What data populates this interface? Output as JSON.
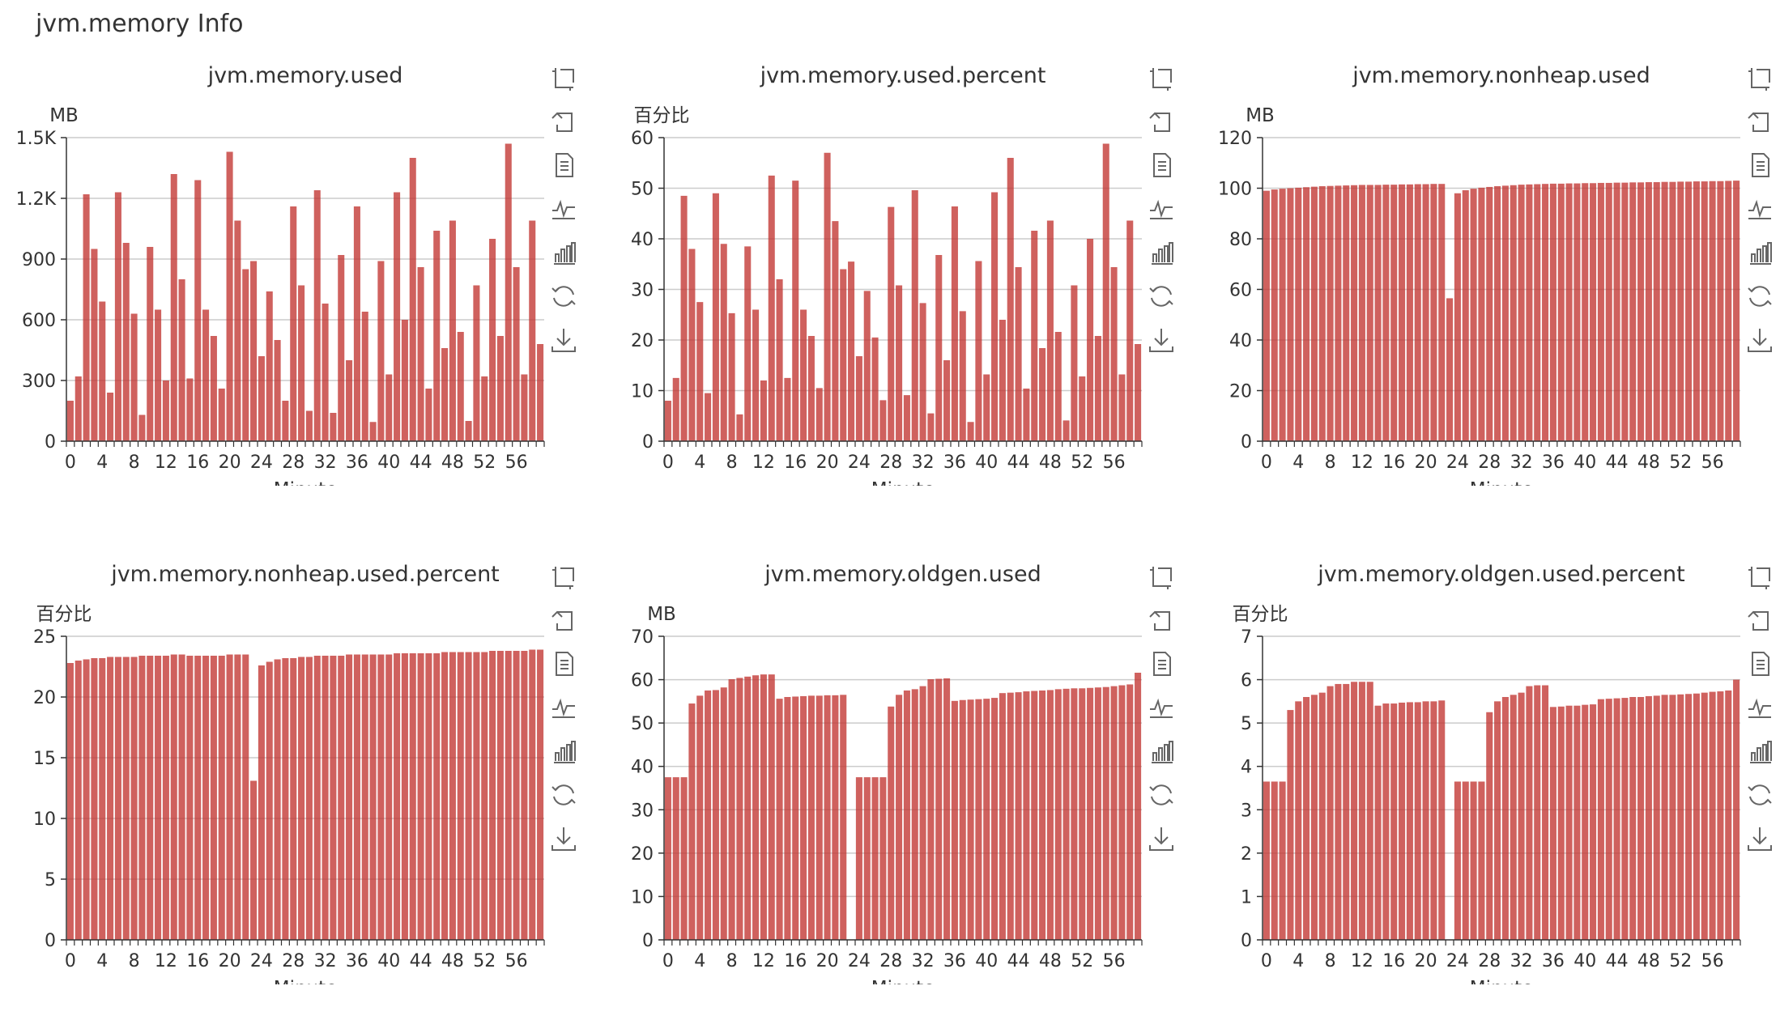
{
  "page": {
    "title": "jvm.memory Info"
  },
  "theme": {
    "bar_color": "#c23531",
    "axis_color": "#333333",
    "grid_color": "#cccccc"
  },
  "toolbox": [
    {
      "name": "data-zoom-icon",
      "title": ""
    },
    {
      "name": "zoom-reset-icon",
      "title": ""
    },
    {
      "name": "data-view-icon",
      "title": ""
    },
    {
      "name": "line-chart-icon",
      "title": ""
    },
    {
      "name": "bar-chart-icon",
      "title": ""
    },
    {
      "name": "restore-icon",
      "title": ""
    },
    {
      "name": "save-image-icon",
      "title": ""
    }
  ],
  "chart_data": [
    {
      "type": "bar",
      "title": "jvm.memory.used",
      "ylabel": "MB",
      "xlabel": "Minute",
      "ylim": [
        0,
        1500
      ],
      "yticks": [
        0,
        300,
        600,
        900,
        1200,
        1500
      ],
      "ytick_labels": [
        "0",
        "300",
        "600",
        "900",
        "1.2K",
        "1.5K"
      ],
      "xtick_labels": [
        "0",
        "4",
        "8",
        "12",
        "16",
        "20",
        "24",
        "28",
        "32",
        "36",
        "40",
        "44",
        "48",
        "52",
        "56"
      ],
      "grid": true,
      "categories": [
        "0",
        "1",
        "2",
        "3",
        "4",
        "5",
        "6",
        "7",
        "8",
        "9",
        "10",
        "11",
        "12",
        "13",
        "14",
        "15",
        "16",
        "17",
        "18",
        "19",
        "20",
        "21",
        "22",
        "23",
        "24",
        "25",
        "26",
        "27",
        "28",
        "29",
        "30",
        "31",
        "32",
        "33",
        "34",
        "35",
        "36",
        "37",
        "38",
        "39",
        "40",
        "41",
        "42",
        "43",
        "44",
        "45",
        "46",
        "47",
        "48",
        "49",
        "50",
        "51",
        "52",
        "53",
        "54",
        "55",
        "56",
        "57",
        "58",
        "59"
      ],
      "values": [
        200,
        320,
        1220,
        950,
        690,
        240,
        1230,
        980,
        630,
        130,
        960,
        650,
        300,
        1320,
        800,
        310,
        1290,
        650,
        520,
        260,
        1430,
        1090,
        850,
        890,
        420,
        740,
        500,
        200,
        1160,
        770,
        150,
        1240,
        680,
        140,
        920,
        400,
        1160,
        640,
        95,
        890,
        330,
        1230,
        600,
        1400,
        860,
        260,
        1040,
        460,
        1090,
        540,
        100,
        770,
        320,
        1000,
        520,
        1470,
        860,
        330,
        1090,
        480
      ]
    },
    {
      "type": "bar",
      "title": "jvm.memory.used.percent",
      "ylabel": "百分比",
      "xlabel": "Minute",
      "ylim": [
        0,
        60
      ],
      "yticks": [
        0,
        10,
        20,
        30,
        40,
        50,
        60
      ],
      "ytick_labels": [
        "0",
        "10",
        "20",
        "30",
        "40",
        "50",
        "60"
      ],
      "xtick_labels": [
        "0",
        "4",
        "8",
        "12",
        "16",
        "20",
        "24",
        "28",
        "32",
        "36",
        "40",
        "44",
        "48",
        "52",
        "56"
      ],
      "grid": true,
      "categories": [
        "0",
        "1",
        "2",
        "3",
        "4",
        "5",
        "6",
        "7",
        "8",
        "9",
        "10",
        "11",
        "12",
        "13",
        "14",
        "15",
        "16",
        "17",
        "18",
        "19",
        "20",
        "21",
        "22",
        "23",
        "24",
        "25",
        "26",
        "27",
        "28",
        "29",
        "30",
        "31",
        "32",
        "33",
        "34",
        "35",
        "36",
        "37",
        "38",
        "39",
        "40",
        "41",
        "42",
        "43",
        "44",
        "45",
        "46",
        "47",
        "48",
        "49",
        "50",
        "51",
        "52",
        "53",
        "54",
        "55",
        "56",
        "57",
        "58",
        "59"
      ],
      "values": [
        8,
        12.5,
        48.5,
        38,
        27.5,
        9.5,
        49,
        39,
        25.3,
        5.3,
        38.5,
        26,
        12,
        52.5,
        32,
        12.5,
        51.5,
        26,
        20.8,
        10.5,
        57,
        43.5,
        34,
        35.5,
        16.8,
        29.7,
        20.5,
        8.1,
        46.3,
        30.8,
        9.1,
        49.6,
        27.3,
        5.5,
        36.8,
        16,
        46.4,
        25.7,
        3.8,
        35.6,
        13.2,
        49.2,
        24,
        56,
        34.4,
        10.4,
        41.6,
        18.4,
        43.6,
        21.6,
        4.1,
        30.8,
        12.8,
        40,
        20.8,
        58.8,
        34.4,
        13.2,
        43.6,
        19.2
      ]
    },
    {
      "type": "bar",
      "title": "jvm.memory.nonheap.used",
      "ylabel": "MB",
      "xlabel": "Minute",
      "ylim": [
        0,
        120
      ],
      "yticks": [
        0,
        20,
        40,
        60,
        80,
        100,
        120
      ],
      "ytick_labels": [
        "0",
        "20",
        "40",
        "60",
        "80",
        "100",
        "120"
      ],
      "xtick_labels": [
        "0",
        "4",
        "8",
        "12",
        "16",
        "20",
        "24",
        "28",
        "32",
        "36",
        "40",
        "44",
        "48",
        "52",
        "56"
      ],
      "grid": true,
      "categories": [
        "0",
        "1",
        "2",
        "3",
        "4",
        "5",
        "6",
        "7",
        "8",
        "9",
        "10",
        "11",
        "12",
        "13",
        "14",
        "15",
        "16",
        "17",
        "18",
        "19",
        "20",
        "21",
        "22",
        "23",
        "24",
        "25",
        "26",
        "27",
        "28",
        "29",
        "30",
        "31",
        "32",
        "33",
        "34",
        "35",
        "36",
        "37",
        "38",
        "39",
        "40",
        "41",
        "42",
        "43",
        "44",
        "45",
        "46",
        "47",
        "48",
        "49",
        "50",
        "51",
        "52",
        "53",
        "54",
        "55",
        "56",
        "57",
        "58",
        "59"
      ],
      "values": [
        99,
        99.5,
        99.8,
        100,
        100.2,
        100.4,
        100.6,
        100.8,
        100.9,
        101,
        101.1,
        101.2,
        101.3,
        101.3,
        101.3,
        101.4,
        101.4,
        101.5,
        101.5,
        101.6,
        101.6,
        101.7,
        101.7,
        56.5,
        98,
        99.2,
        99.8,
        100.2,
        100.5,
        100.8,
        101,
        101.2,
        101.4,
        101.5,
        101.6,
        101.7,
        101.8,
        101.8,
        101.9,
        101.9,
        102,
        102,
        102.1,
        102.1,
        102.2,
        102.2,
        102.3,
        102.3,
        102.4,
        102.4,
        102.5,
        102.5,
        102.6,
        102.6,
        102.7,
        102.7,
        102.8,
        102.8,
        102.9,
        103
      ]
    },
    {
      "type": "bar",
      "title": "jvm.memory.nonheap.used.percent",
      "ylabel": "百分比",
      "xlabel": "Minute",
      "ylim": [
        0,
        25
      ],
      "yticks": [
        0,
        5,
        10,
        15,
        20,
        25
      ],
      "ytick_labels": [
        "0",
        "5",
        "10",
        "15",
        "20",
        "25"
      ],
      "xtick_labels": [
        "0",
        "4",
        "8",
        "12",
        "16",
        "20",
        "24",
        "28",
        "32",
        "36",
        "40",
        "44",
        "48",
        "52",
        "56"
      ],
      "grid": true,
      "categories": [
        "0",
        "1",
        "2",
        "3",
        "4",
        "5",
        "6",
        "7",
        "8",
        "9",
        "10",
        "11",
        "12",
        "13",
        "14",
        "15",
        "16",
        "17",
        "18",
        "19",
        "20",
        "21",
        "22",
        "23",
        "24",
        "25",
        "26",
        "27",
        "28",
        "29",
        "30",
        "31",
        "32",
        "33",
        "34",
        "35",
        "36",
        "37",
        "38",
        "39",
        "40",
        "41",
        "42",
        "43",
        "44",
        "45",
        "46",
        "47",
        "48",
        "49",
        "50",
        "51",
        "52",
        "53",
        "54",
        "55",
        "56",
        "57",
        "58",
        "59"
      ],
      "values": [
        22.8,
        23,
        23.1,
        23.2,
        23.2,
        23.3,
        23.3,
        23.3,
        23.3,
        23.4,
        23.4,
        23.4,
        23.4,
        23.5,
        23.5,
        23.4,
        23.4,
        23.4,
        23.4,
        23.4,
        23.5,
        23.5,
        23.5,
        13.1,
        22.6,
        22.9,
        23.1,
        23.2,
        23.2,
        23.3,
        23.3,
        23.4,
        23.4,
        23.4,
        23.4,
        23.5,
        23.5,
        23.5,
        23.5,
        23.5,
        23.5,
        23.6,
        23.6,
        23.6,
        23.6,
        23.6,
        23.6,
        23.7,
        23.7,
        23.7,
        23.7,
        23.7,
        23.7,
        23.8,
        23.8,
        23.8,
        23.8,
        23.8,
        23.9,
        23.9
      ]
    },
    {
      "type": "bar",
      "title": "jvm.memory.oldgen.used",
      "ylabel": "MB",
      "xlabel": "Minute",
      "ylim": [
        0,
        70
      ],
      "yticks": [
        0,
        10,
        20,
        30,
        40,
        50,
        60,
        70
      ],
      "ytick_labels": [
        "0",
        "10",
        "20",
        "30",
        "40",
        "50",
        "60",
        "70"
      ],
      "xtick_labels": [
        "0",
        "4",
        "8",
        "12",
        "16",
        "20",
        "24",
        "28",
        "32",
        "36",
        "40",
        "44",
        "48",
        "52",
        "56"
      ],
      "grid": true,
      "categories": [
        "0",
        "1",
        "2",
        "3",
        "4",
        "5",
        "6",
        "7",
        "8",
        "9",
        "10",
        "11",
        "12",
        "13",
        "14",
        "15",
        "16",
        "17",
        "18",
        "19",
        "20",
        "21",
        "22",
        "23",
        "24",
        "25",
        "26",
        "27",
        "28",
        "29",
        "30",
        "31",
        "32",
        "33",
        "34",
        "35",
        "36",
        "37",
        "38",
        "39",
        "40",
        "41",
        "42",
        "43",
        "44",
        "45",
        "46",
        "47",
        "48",
        "49",
        "50",
        "51",
        "52",
        "53",
        "54",
        "55",
        "56",
        "57",
        "58",
        "59"
      ],
      "values": [
        37.5,
        37.5,
        37.5,
        54.5,
        56.3,
        57.5,
        57.6,
        58.2,
        60.1,
        60.4,
        60.7,
        61,
        61.2,
        61.2,
        55.6,
        56,
        56.1,
        56.2,
        56.3,
        56.3,
        56.4,
        56.4,
        56.5,
        0,
        37.5,
        37.5,
        37.5,
        37.5,
        53.8,
        56.5,
        57.5,
        57.8,
        58.5,
        60.1,
        60.2,
        60.3,
        55.1,
        55.3,
        55.4,
        55.5,
        55.6,
        55.8,
        56.9,
        57,
        57.1,
        57.3,
        57.4,
        57.5,
        57.6,
        57.8,
        57.9,
        58,
        58,
        58.1,
        58.2,
        58.3,
        58.5,
        58.7,
        58.9,
        61.6
      ]
    },
    {
      "type": "bar",
      "title": "jvm.memory.oldgen.used.percent",
      "ylabel": "百分比",
      "xlabel": "Minute",
      "ylim": [
        0,
        7
      ],
      "yticks": [
        0,
        1,
        2,
        3,
        4,
        5,
        6,
        7
      ],
      "ytick_labels": [
        "0",
        "1",
        "2",
        "3",
        "4",
        "5",
        "6",
        "7"
      ],
      "xtick_labels": [
        "0",
        "4",
        "8",
        "12",
        "16",
        "20",
        "24",
        "28",
        "32",
        "36",
        "40",
        "44",
        "48",
        "52",
        "56"
      ],
      "grid": true,
      "categories": [
        "0",
        "1",
        "2",
        "3",
        "4",
        "5",
        "6",
        "7",
        "8",
        "9",
        "10",
        "11",
        "12",
        "13",
        "14",
        "15",
        "16",
        "17",
        "18",
        "19",
        "20",
        "21",
        "22",
        "23",
        "24",
        "25",
        "26",
        "27",
        "28",
        "29",
        "30",
        "31",
        "32",
        "33",
        "34",
        "35",
        "36",
        "37",
        "38",
        "39",
        "40",
        "41",
        "42",
        "43",
        "44",
        "45",
        "46",
        "47",
        "48",
        "49",
        "50",
        "51",
        "52",
        "53",
        "54",
        "55",
        "56",
        "57",
        "58",
        "59"
      ],
      "values": [
        3.65,
        3.65,
        3.65,
        5.3,
        5.5,
        5.6,
        5.65,
        5.7,
        5.85,
        5.9,
        5.9,
        5.95,
        5.95,
        5.95,
        5.4,
        5.45,
        5.45,
        5.47,
        5.48,
        5.48,
        5.5,
        5.5,
        5.52,
        0,
        3.65,
        3.65,
        3.65,
        3.65,
        5.25,
        5.5,
        5.6,
        5.65,
        5.7,
        5.85,
        5.87,
        5.87,
        5.37,
        5.38,
        5.4,
        5.4,
        5.42,
        5.43,
        5.55,
        5.56,
        5.57,
        5.58,
        5.6,
        5.6,
        5.62,
        5.63,
        5.65,
        5.65,
        5.66,
        5.67,
        5.68,
        5.7,
        5.72,
        5.73,
        5.75,
        6.0
      ]
    }
  ]
}
